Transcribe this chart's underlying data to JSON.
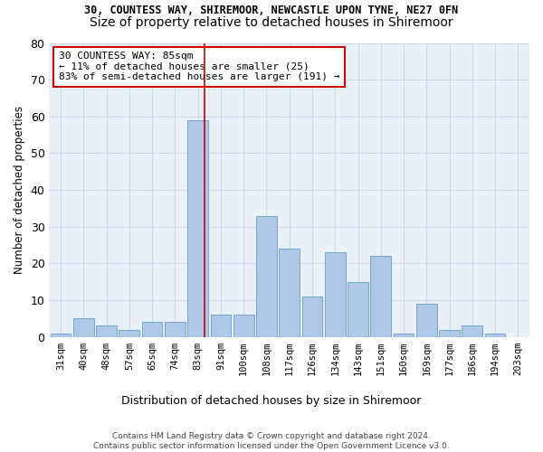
{
  "title_line1": "30, COUNTESS WAY, SHIREMOOR, NEWCASTLE UPON TYNE, NE27 0FN",
  "title_line2": "Size of property relative to detached houses in Shiremoor",
  "xlabel": "Distribution of detached houses by size in Shiremoor",
  "ylabel": "Number of detached properties",
  "categories": [
    "31sqm",
    "40sqm",
    "48sqm",
    "57sqm",
    "65sqm",
    "74sqm",
    "83sqm",
    "91sqm",
    "100sqm",
    "108sqm",
    "117sqm",
    "126sqm",
    "134sqm",
    "143sqm",
    "151sqm",
    "160sqm",
    "169sqm",
    "177sqm",
    "186sqm",
    "194sqm",
    "203sqm"
  ],
  "values": [
    1,
    5,
    3,
    2,
    4,
    4,
    59,
    6,
    6,
    33,
    24,
    11,
    23,
    15,
    22,
    1,
    9,
    2,
    3,
    1,
    0
  ],
  "bar_color": "#aec6e8",
  "bar_edge_color": "#6a9fc8",
  "vline_x": 6.3,
  "vline_color": "#cc0000",
  "annotation_text": "30 COUNTESS WAY: 85sqm\n← 11% of detached houses are smaller (25)\n83% of semi-detached houses are larger (191) →",
  "annotation_box_color": "#ffffff",
  "annotation_box_edge": "#cc0000",
  "ylim": [
    0,
    80
  ],
  "yticks": [
    0,
    10,
    20,
    30,
    40,
    50,
    60,
    70,
    80
  ],
  "grid_color": "#d0d8e8",
  "bg_color": "#eaf0f8",
  "footnote": "Contains HM Land Registry data © Crown copyright and database right 2024.\nContains public sector information licensed under the Open Government Licence v3.0.",
  "title_fontsize": 8.5,
  "subtitle_fontsize": 10
}
